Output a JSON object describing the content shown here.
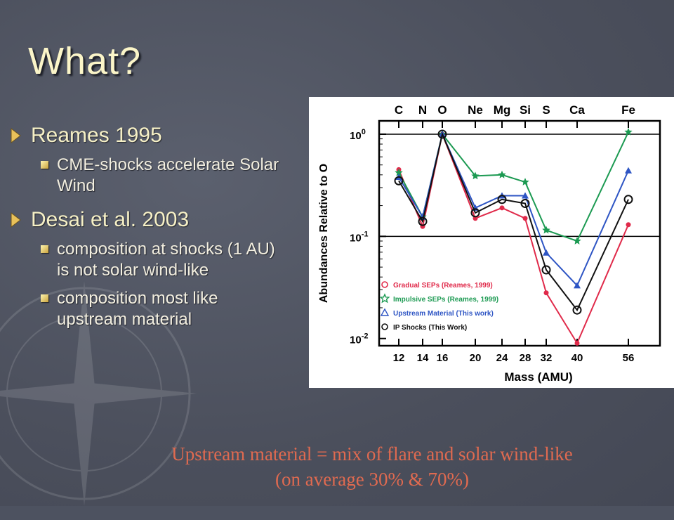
{
  "slide": {
    "title": "What?",
    "bullets": [
      {
        "text": "Reames 1995",
        "sub": [
          "CME-shocks accelerate Solar Wind"
        ]
      },
      {
        "text": "Desai et al. 2003",
        "sub": [
          "composition at shocks (1 AU) is not solar wind-like",
          "composition most like upstream material"
        ]
      }
    ],
    "footer_line1": "Upstream material = mix of flare and solar wind-like",
    "footer_line2": "(on average 30% & 70%)",
    "colors": {
      "background": "#4d5260",
      "title": "#fbf5c8",
      "footer": "#e06a50",
      "bullet_marker": "#e8c15a"
    }
  },
  "chart_data": {
    "type": "line",
    "xlabel": "Mass (AMU)",
    "ylabel": "Abundances Relative to O",
    "yscale": "log",
    "ylim": [
      0.0085,
      1.35
    ],
    "x": [
      12,
      14,
      16,
      20,
      24,
      28,
      32,
      40,
      56
    ],
    "x_tick_labels": [
      "12",
      "14",
      "16",
      "20",
      "24",
      "28",
      "32",
      "40",
      "56"
    ],
    "element_labels": [
      "C",
      "N",
      "O",
      "Ne",
      "Mg",
      "Si",
      "S",
      "Ca",
      "Fe"
    ],
    "y_ticks": [
      {
        "value": 1,
        "base": "10",
        "exp": "0"
      },
      {
        "value": 0.1,
        "base": "10",
        "exp": "-1"
      },
      {
        "value": 0.01,
        "base": "10",
        "exp": "-2"
      }
    ],
    "reference_lines": [
      1,
      0.1
    ],
    "legend_position": "bottom-left",
    "series": [
      {
        "name": "Gradual SEPs (Reames, 1999)",
        "color": "#e02a4a",
        "marker": "circle-small",
        "values": [
          0.45,
          0.125,
          1,
          0.15,
          0.19,
          0.15,
          0.028,
          0.009,
          0.13
        ]
      },
      {
        "name": "Impulsive SEPs (Reames, 1999)",
        "color": "#1c9a52",
        "marker": "star",
        "values": [
          0.42,
          0.155,
          1,
          0.39,
          0.4,
          0.34,
          0.115,
          0.09,
          1.05
        ]
      },
      {
        "name": "Upstream Material (This work)",
        "color": "#2e55c4",
        "marker": "triangle",
        "values": [
          0.38,
          0.155,
          1,
          0.19,
          0.25,
          0.25,
          0.069,
          0.033,
          0.44
        ]
      },
      {
        "name": "IP Shocks (This Work)",
        "color": "#111111",
        "marker": "circle",
        "values": [
          0.35,
          0.14,
          1,
          0.17,
          0.23,
          0.21,
          0.047,
          0.019,
          0.23
        ]
      }
    ]
  }
}
